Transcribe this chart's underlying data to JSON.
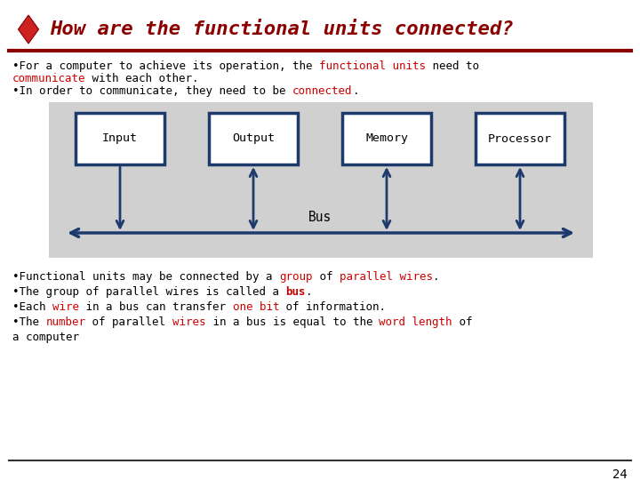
{
  "title": "How are the functional units connected?",
  "title_color": "#8B0000",
  "diamond_color": "#CC2222",
  "bg_color": "#FFFFFF",
  "slide_number": "24",
  "line_color": "#8B0000",
  "box_bg": "#FFFFFF",
  "box_border": "#1C3A6B",
  "diagram_bg": "#D0D0D0",
  "boxes": [
    "Input",
    "Output",
    "Memory",
    "Processor"
  ],
  "bus_label": "Bus",
  "arrow_color": "#1C3A6B",
  "bottom_lines": [
    {
      "parts": [
        {
          "text": "•Functional units may be connected by a ",
          "color": "#000000",
          "bold": false
        },
        {
          "text": "group",
          "color": "#CC0000",
          "bold": false
        },
        {
          "text": " of ",
          "color": "#000000",
          "bold": false
        },
        {
          "text": "parallel wires",
          "color": "#CC0000",
          "bold": false
        },
        {
          "text": ".",
          "color": "#000000",
          "bold": false
        }
      ]
    },
    {
      "parts": [
        {
          "text": "•The group of parallel wires is called a ",
          "color": "#000000",
          "bold": false
        },
        {
          "text": "bus",
          "color": "#CC0000",
          "bold": true
        },
        {
          "text": ".",
          "color": "#000000",
          "bold": false
        }
      ]
    },
    {
      "parts": [
        {
          "text": "•Each ",
          "color": "#000000",
          "bold": false
        },
        {
          "text": "wire",
          "color": "#CC0000",
          "bold": false
        },
        {
          "text": " in a bus can transfer ",
          "color": "#000000",
          "bold": false
        },
        {
          "text": "one bit",
          "color": "#CC0000",
          "bold": false
        },
        {
          "text": " of information.",
          "color": "#000000",
          "bold": false
        }
      ]
    },
    {
      "parts": [
        {
          "text": "•The ",
          "color": "#000000",
          "bold": false
        },
        {
          "text": "number",
          "color": "#CC0000",
          "bold": false
        },
        {
          "text": " of parallel ",
          "color": "#000000",
          "bold": false
        },
        {
          "text": "wires",
          "color": "#CC0000",
          "bold": false
        },
        {
          "text": " in a bus is equal to the ",
          "color": "#000000",
          "bold": false
        },
        {
          "text": "word length",
          "color": "#CC0000",
          "bold": false
        },
        {
          "text": " of",
          "color": "#000000",
          "bold": false
        }
      ]
    },
    {
      "parts": [
        {
          "text": "a computer",
          "color": "#000000",
          "bold": false
        }
      ]
    }
  ]
}
